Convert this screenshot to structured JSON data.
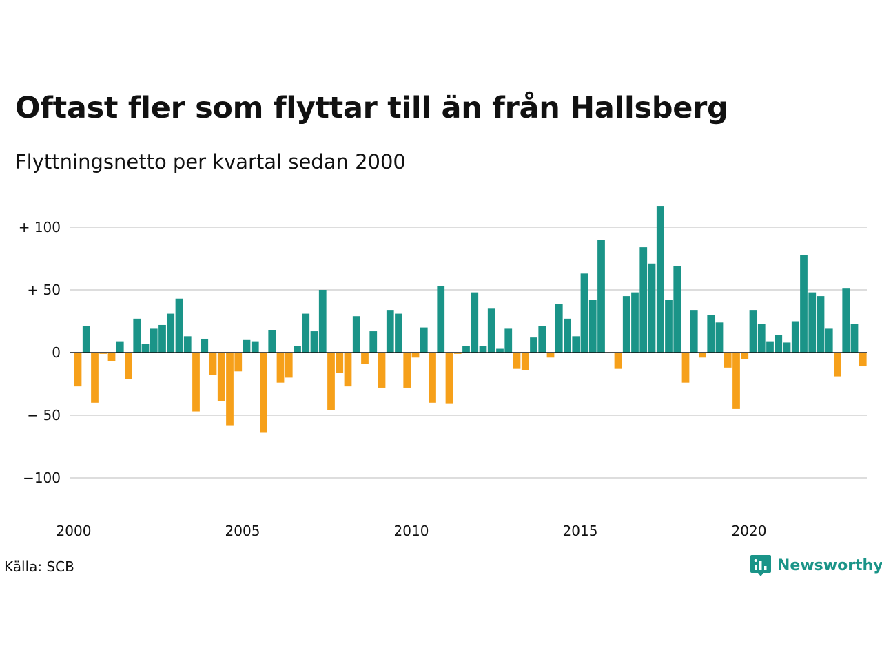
{
  "title": "Oftast fler som flyttar till än från Hallsberg",
  "subtitle": "Flyttningsnetto per kvartal sedan 2000",
  "source": "Källa: SCB",
  "brand": "Newsworthy",
  "colors": {
    "positive": "#1a9488",
    "negative": "#f6a01a",
    "grid": "#dddddd",
    "zero": "#111111"
  },
  "chart_data": {
    "type": "bar",
    "x_start": 2000.0,
    "x_step": 0.25,
    "ylim": [
      -100,
      120
    ],
    "xlim": [
      2000,
      2023.5
    ],
    "grid": true,
    "y_ticks": [
      100,
      50,
      0,
      -50,
      -100
    ],
    "y_tick_labels": [
      "+ 100",
      "+  50",
      "0",
      "− 50",
      "−100"
    ],
    "x_ticks": [
      2000,
      2005,
      2010,
      2015,
      2020
    ],
    "x_tick_labels": [
      "2000",
      "2005",
      "2010",
      "2015",
      "2020"
    ],
    "values": [
      -27,
      21,
      -40,
      -1,
      -7,
      9,
      -21,
      27,
      7,
      19,
      22,
      31,
      43,
      13,
      -47,
      11,
      -18,
      -39,
      -58,
      -15,
      10,
      9,
      -64,
      18,
      -24,
      -20,
      5,
      31,
      17,
      50,
      -46,
      -16,
      -27,
      29,
      -9,
      17,
      -28,
      34,
      31,
      -28,
      -4,
      20,
      -40,
      53,
      -41,
      -1,
      5,
      48,
      5,
      35,
      3,
      19,
      -13,
      -14,
      12,
      21,
      -4,
      39,
      27,
      13,
      63,
      42,
      90,
      0,
      -13,
      45,
      48,
      84,
      71,
      117,
      42,
      69,
      -24,
      34,
      -4,
      30,
      24,
      -12,
      -45,
      -5,
      34,
      23,
      9,
      14,
      8,
      25,
      78,
      48,
      45,
      19,
      -19,
      51,
      23,
      -11
    ]
  }
}
